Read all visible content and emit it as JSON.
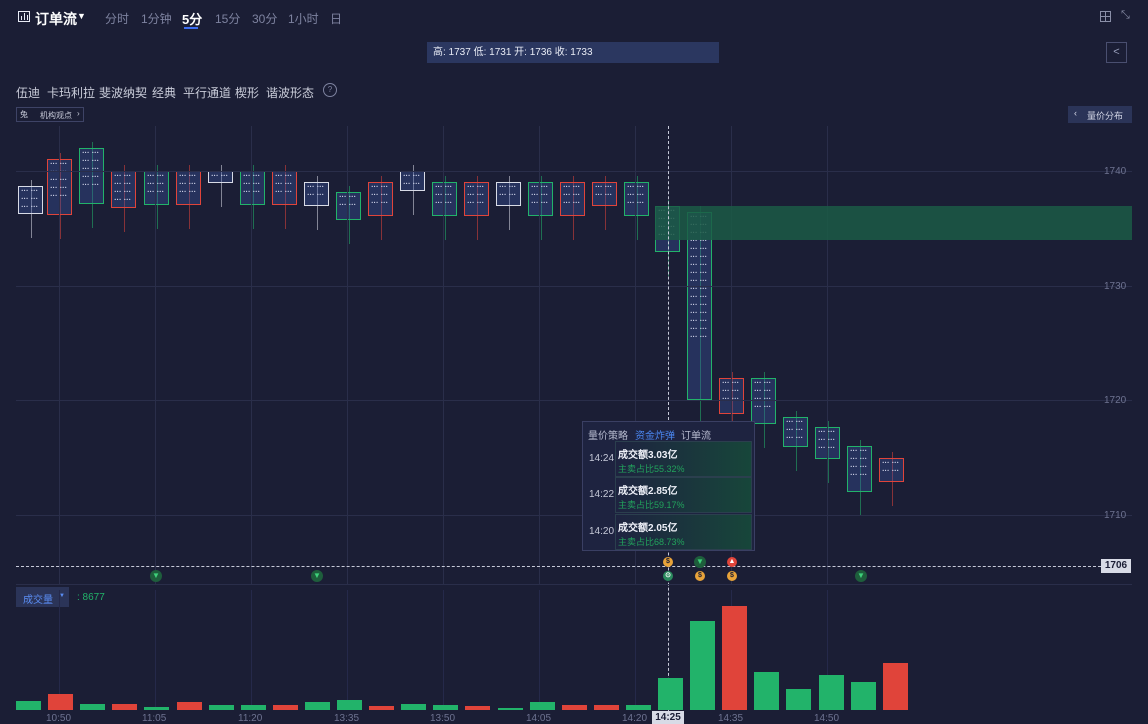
{
  "title": "订单流",
  "timeframes": [
    {
      "label": "分时"
    },
    {
      "label": "1分钟"
    },
    {
      "label": "5分",
      "active": true
    },
    {
      "label": "15分"
    },
    {
      "label": "30分"
    },
    {
      "label": "1小时"
    },
    {
      "label": "日"
    }
  ],
  "ohlc": "高: 1737 低: 1731 开: 1736 收: 1733",
  "drawing_tools": [
    "伍迪",
    "卡玛利拉",
    "斐波纳契",
    "经典",
    "平行通道",
    "楔形",
    "谐波形态"
  ],
  "badge": {
    "label": "机构观点"
  },
  "volume_profile_button": "量价分布",
  "price_axis": [
    {
      "label": "1740",
      "value": 1740
    },
    {
      "label": "1730",
      "value": 1730
    },
    {
      "label": "1720",
      "value": 1720
    },
    {
      "label": "1710",
      "value": 1710
    }
  ],
  "current_price": "1706",
  "time_axis": [
    "10:50",
    "11:05",
    "11:20",
    "13:35",
    "13:50",
    "14:05",
    "14:20",
    "14:35",
    "14:50"
  ],
  "crosshair_time": "14:25",
  "volume": {
    "label": "成交量",
    "value": ": 8677"
  },
  "popup": {
    "tabs": [
      {
        "label": "量价策略"
      },
      {
        "label": "资金炸弹",
        "active": true
      },
      {
        "label": "订单流"
      }
    ],
    "rows": [
      {
        "time": "14:24",
        "amount": "成交额3.03亿",
        "ratio": "主卖占比55.32%"
      },
      {
        "time": "14:22",
        "amount": "成交额2.85亿",
        "ratio": "主卖占比59.17%"
      },
      {
        "time": "14:20",
        "amount": "成交额2.05亿",
        "ratio": "主卖占比68.73%"
      }
    ]
  },
  "colors": {
    "background": "#1b1e35",
    "up": "#22b36a",
    "down": "#e0443a",
    "accent": "#3d6df2",
    "zone": "#1b5a45"
  },
  "volume_bars": [
    {
      "up": true,
      "level": 0.09
    },
    {
      "up": false,
      "level": 0.15
    },
    {
      "up": true,
      "level": 0.06
    },
    {
      "up": false,
      "level": 0.06
    },
    {
      "up": true,
      "level": 0.03
    },
    {
      "up": false,
      "level": 0.08
    },
    {
      "up": true,
      "level": 0.05
    },
    {
      "up": true,
      "level": 0.05
    },
    {
      "up": false,
      "level": 0.05
    },
    {
      "up": true,
      "level": 0.08
    },
    {
      "up": true,
      "level": 0.1
    },
    {
      "up": false,
      "level": 0.04
    },
    {
      "up": true,
      "level": 0.06
    },
    {
      "up": true,
      "level": 0.05
    },
    {
      "up": false,
      "level": 0.04
    },
    {
      "up": true,
      "level": 0.02
    },
    {
      "up": true,
      "level": 0.08
    },
    {
      "up": false,
      "level": 0.05
    },
    {
      "up": false,
      "level": 0.05
    },
    {
      "up": true,
      "level": 0.05
    },
    {
      "up": true,
      "level": 0.31
    },
    {
      "up": true,
      "level": 0.86
    },
    {
      "up": false,
      "level": 1.0
    },
    {
      "up": true,
      "level": 0.37
    },
    {
      "up": true,
      "level": 0.2
    },
    {
      "up": true,
      "level": 0.34
    },
    {
      "up": true,
      "level": 0.27
    },
    {
      "up": false,
      "level": 0.45
    }
  ]
}
